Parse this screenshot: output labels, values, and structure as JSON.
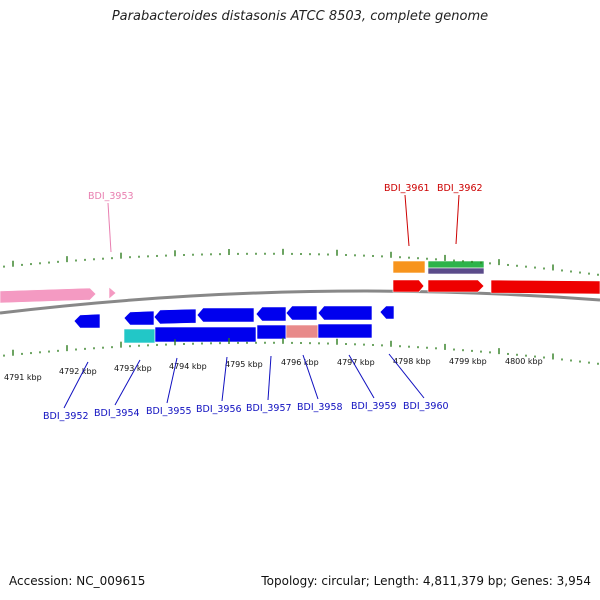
{
  "title": "Parabacteroides distasonis ATCC 8503, complete genome",
  "footer": {
    "accession": "Accession: NC_009615",
    "summary": "Topology: circular; Length: 4,811,379 bp; Genes: 3,954"
  },
  "colors": {
    "backbone": "#888888",
    "tick": "#2e7d1f",
    "gene_blue": "#0000ee",
    "gene_red": "#ee0000",
    "gene_pink": "#f49ac2",
    "gene_orange": "#f7941d",
    "gene_green": "#2db34a",
    "gene_purple": "#5b4b8a",
    "gene_cyan": "#22c7c7",
    "gene_salmon": "#e88a8a",
    "label_blue": "#1010c0",
    "label_red": "#cc0000",
    "label_pink": "#e87fb0"
  },
  "scale": {
    "kbp_labels": [
      "4791 kbp",
      "4792 kbp",
      "4793 kbp",
      "4794 kbp",
      "4795 kbp",
      "4796 kbp",
      "4797 kbp",
      "4798 kbp",
      "4799 kbp",
      "4800 kbp"
    ]
  },
  "gene_labels": [
    {
      "id": "BDI_3953",
      "color": "label_pink"
    },
    {
      "id": "BDI_3961",
      "color": "label_red"
    },
    {
      "id": "BDI_3962",
      "color": "label_red"
    },
    {
      "id": "BDI_3952",
      "color": "label_blue"
    },
    {
      "id": "BDI_3954",
      "color": "label_blue"
    },
    {
      "id": "BDI_3955",
      "color": "label_blue"
    },
    {
      "id": "BDI_3956",
      "color": "label_blue"
    },
    {
      "id": "BDI_3957",
      "color": "label_blue"
    },
    {
      "id": "BDI_3958",
      "color": "label_blue"
    },
    {
      "id": "BDI_3959",
      "color": "label_blue"
    },
    {
      "id": "BDI_3960",
      "color": "label_blue"
    }
  ]
}
